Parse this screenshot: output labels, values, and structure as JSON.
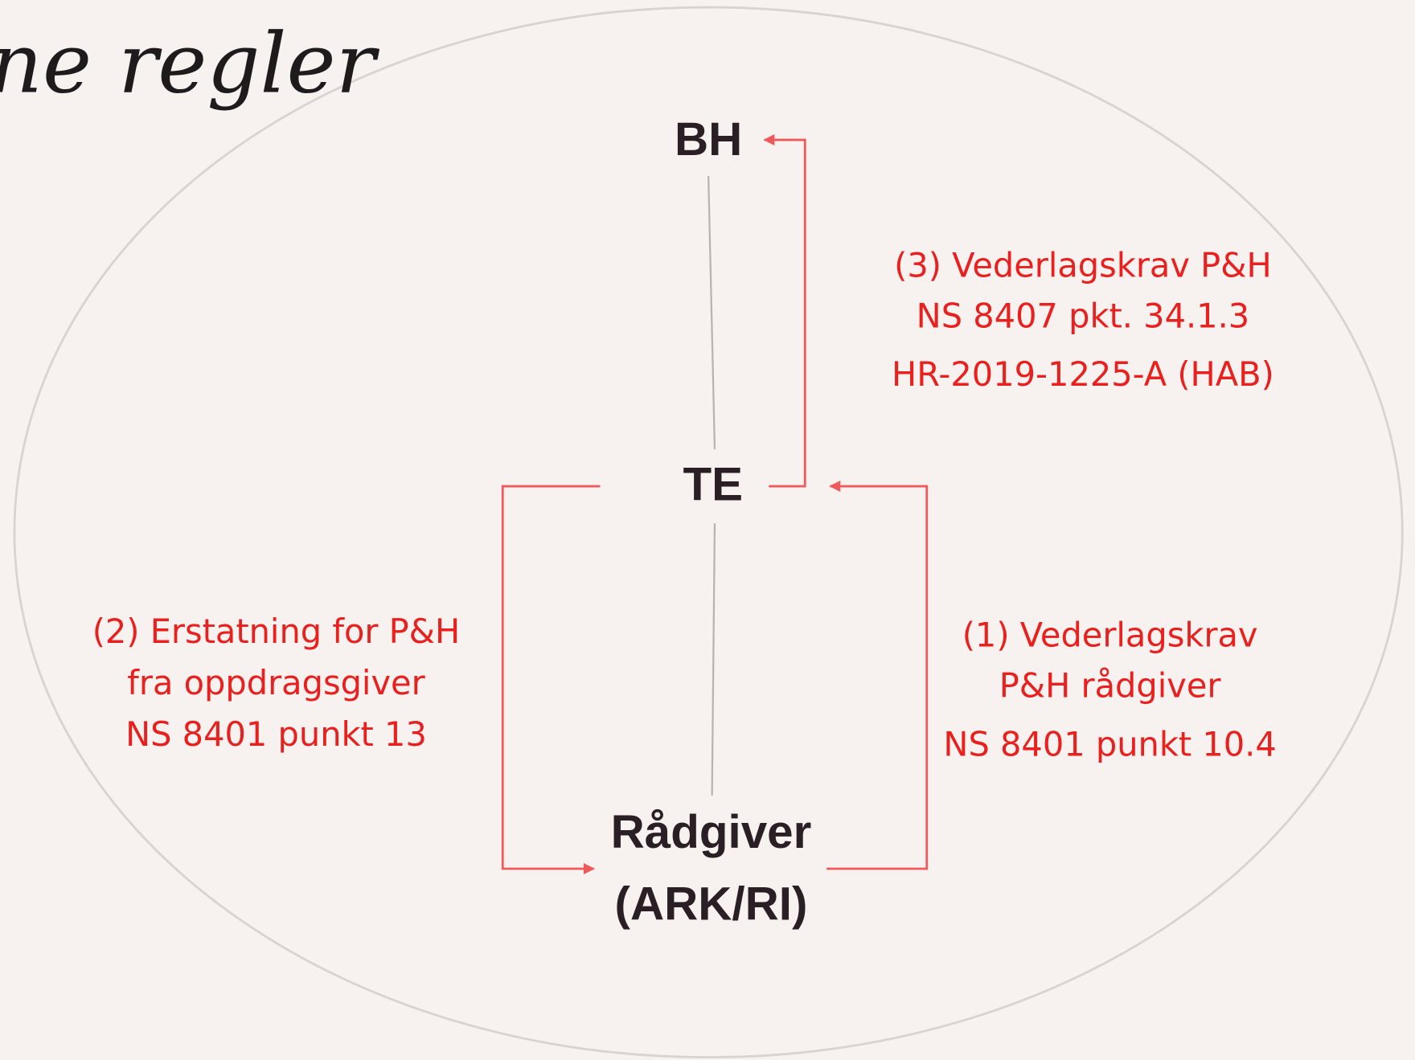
{
  "title": "ne regler",
  "nodes": [
    {
      "label": "BH"
    },
    {
      "label": "TE"
    },
    {
      "lines": [
        "Rådgiver",
        "(ARK/RI)"
      ]
    }
  ],
  "annotations": [
    {
      "lines": [
        "(3) Vederlagskrav P&H",
        "NS 8407 pkt. 34.1.3",
        "HR-2019-1225-A (HAB)"
      ]
    },
    {
      "lines": [
        "(2) Erstatning for P&H",
        "fra oppdragsgiver",
        "NS 8401 punkt 13"
      ]
    },
    {
      "lines": [
        "(1) Vederlagskrav",
        "P&H rådgiver",
        "NS 8401 punkt 10.4"
      ]
    }
  ]
}
